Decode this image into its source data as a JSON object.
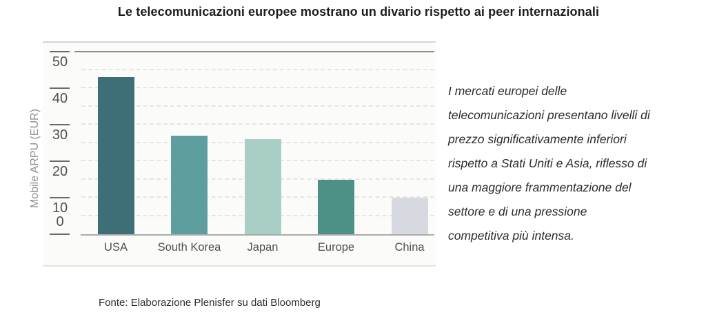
{
  "page": {
    "title": "Le telecomunicazioni europee mostrano un divario rispetto ai peer internazionali",
    "commentary": "I mercati europei delle\ntelecomunicazioni presentano livelli di\nprezzo significativamente inferiori\nrispetto a Stati Uniti e Asia, riflesso di\nuna maggiore frammentazione del\nsettore e di una pressione\ncompetitiva più intensa.",
    "source_note": "Fonte: Elaborazione Plenisfer su dati Bloomberg"
  },
  "chart_data": {
    "type": "bar",
    "title": "Le telecomunicazioni europee mostrano un divario rispetto ai peer internazionali",
    "categories": [
      "USA",
      "South Korea",
      "Japan",
      "Europe",
      "China"
    ],
    "values": [
      43,
      27,
      26,
      15,
      10
    ],
    "xlabel": "",
    "ylabel": "Mobile ARPU (EUR)",
    "ylim": [
      0,
      50
    ],
    "yticks": [
      0,
      10,
      20,
      30,
      40,
      50
    ],
    "grid": "horizontal dashed every 5 units; solid line at 50; no vertical gridlines",
    "legend_position": "none",
    "bar_colors": [
      "#3e6f77",
      "#5f9e9e",
      "#a8cec5",
      "#4d9086",
      "#d7d9e0"
    ],
    "axis_text_color": "#4f4f4f"
  }
}
